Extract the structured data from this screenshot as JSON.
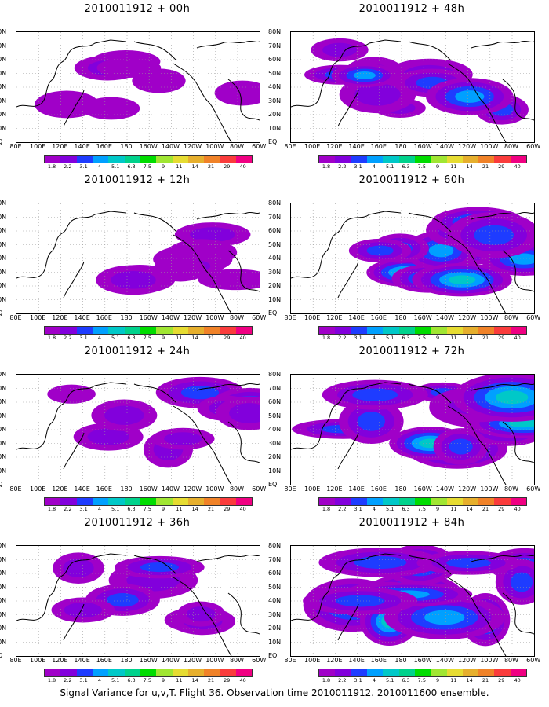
{
  "caption": "Signal Variance for u,v,T. Flight 36. Observation time 2010011912. 2010011600 ensemble.",
  "panels": [
    {
      "title": "2010011912 + 00h",
      "intensity": 0.25
    },
    {
      "title": "2010011912 + 48h",
      "intensity": 0.55
    },
    {
      "title": "2010011912 + 12h",
      "intensity": 0.35
    },
    {
      "title": "2010011912 + 60h",
      "intensity": 0.7
    },
    {
      "title": "2010011912 + 24h",
      "intensity": 0.45
    },
    {
      "title": "2010011912 + 72h",
      "intensity": 0.8
    },
    {
      "title": "2010011912 + 36h",
      "intensity": 0.5
    },
    {
      "title": "2010011912 + 84h",
      "intensity": 0.9
    }
  ],
  "lat_labels": [
    "80N",
    "70N",
    "60N",
    "50N",
    "40N",
    "30N",
    "20N",
    "10N",
    "EQ"
  ],
  "lon_labels": [
    "80E",
    "100E",
    "120E",
    "140E",
    "160E",
    "180",
    "160W",
    "140W",
    "120W",
    "100W",
    "80W",
    "60W"
  ],
  "colorbar": {
    "labels": [
      "1.8",
      "2.2",
      "3.1",
      "4",
      "5.1",
      "6.3",
      "7.5",
      "9",
      "11",
      "14",
      "21",
      "29",
      "40"
    ],
    "colors": [
      "#a000c8",
      "#8200dc",
      "#1e3cff",
      "#00a0ff",
      "#00c8c8",
      "#00d28c",
      "#00dc00",
      "#a0e632",
      "#e6dc32",
      "#e6af2d",
      "#f08228",
      "#fa3c3c",
      "#f00082"
    ]
  },
  "icons": {
    "clock": "clock-icon"
  }
}
